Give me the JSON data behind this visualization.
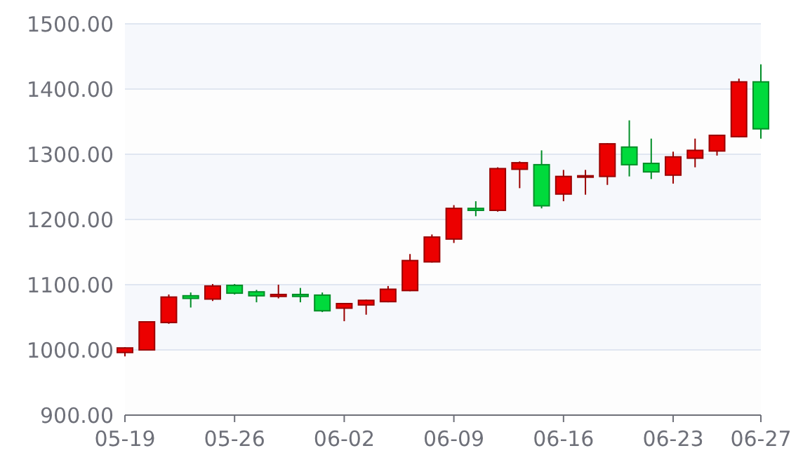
{
  "chart_data": {
    "type": "candlestick",
    "categories": [
      "05-19",
      null,
      null,
      null,
      null,
      "05-26",
      null,
      null,
      null,
      null,
      "06-02",
      null,
      null,
      null,
      null,
      "06-09",
      null,
      null,
      null,
      null,
      "06-16",
      null,
      null,
      null,
      null,
      "06-23",
      null,
      null,
      null,
      "06-27"
    ],
    "ohlc": [
      [
        996,
        1004,
        990,
        1003
      ],
      [
        1000,
        1044,
        1000,
        1043
      ],
      [
        1042,
        1085,
        1040,
        1081
      ],
      [
        1083,
        1088,
        1065,
        1079
      ],
      [
        1078,
        1101,
        1075,
        1098
      ],
      [
        1099,
        1101,
        1085,
        1087
      ],
      [
        1089,
        1092,
        1073,
        1083
      ],
      [
        1082,
        1100,
        1079,
        1085
      ],
      [
        1085,
        1095,
        1073,
        1082
      ],
      [
        1084,
        1088,
        1058,
        1060
      ],
      [
        1064,
        1072,
        1044,
        1071
      ],
      [
        1069,
        1077,
        1054,
        1076
      ],
      [
        1074,
        1098,
        1073,
        1093
      ],
      [
        1091,
        1147,
        1090,
        1137
      ],
      [
        1135,
        1177,
        1134,
        1173
      ],
      [
        1170,
        1222,
        1164,
        1217
      ],
      [
        1217,
        1228,
        1205,
        1214
      ],
      [
        1214,
        1280,
        1212,
        1278
      ],
      [
        1277,
        1289,
        1248,
        1287
      ],
      [
        1284,
        1306,
        1217,
        1221
      ],
      [
        1239,
        1276,
        1228,
        1266
      ],
      [
        1265,
        1276,
        1238,
        1267
      ],
      [
        1266,
        1317,
        1253,
        1316
      ],
      [
        1311,
        1352,
        1266,
        1284
      ],
      [
        1286,
        1324,
        1262,
        1273
      ],
      [
        1268,
        1304,
        1255,
        1296
      ],
      [
        1294,
        1324,
        1280,
        1306
      ],
      [
        1305,
        1330,
        1298,
        1329
      ],
      [
        1327,
        1416,
        1326,
        1411
      ],
      [
        1411,
        1438,
        1324,
        1339
      ]
    ],
    "colors": [
      "#ec0000",
      "#ec0000",
      "#ec0000",
      "#00da3c",
      "#ec0000",
      "#00da3c",
      "#00da3c",
      "#ec0000",
      "#00da3c",
      "#00da3c",
      "#ec0000",
      "#ec0000",
      "#ec0000",
      "#ec0000",
      "#ec0000",
      "#ec0000",
      "#00da3c",
      "#ec0000",
      "#ec0000",
      "#00da3c",
      "#ec0000",
      "#ec0000",
      "#ec0000",
      "#00da3c",
      "#00da3c",
      "#ec0000",
      "#ec0000",
      "#ec0000",
      "#ec0000",
      "#00da3c"
    ],
    "ylim": [
      900,
      1500
    ],
    "yticks": [
      {
        "value": 900,
        "label": "900.00"
      },
      {
        "value": 1000,
        "label": "1000.00"
      },
      {
        "value": 1100,
        "label": "1100.00"
      },
      {
        "value": 1200,
        "label": "1200.00"
      },
      {
        "value": 1300,
        "label": "1300.00"
      },
      {
        "value": 1400,
        "label": "1400.00"
      },
      {
        "value": 1500,
        "label": "1500.00"
      }
    ],
    "grid": "y"
  }
}
